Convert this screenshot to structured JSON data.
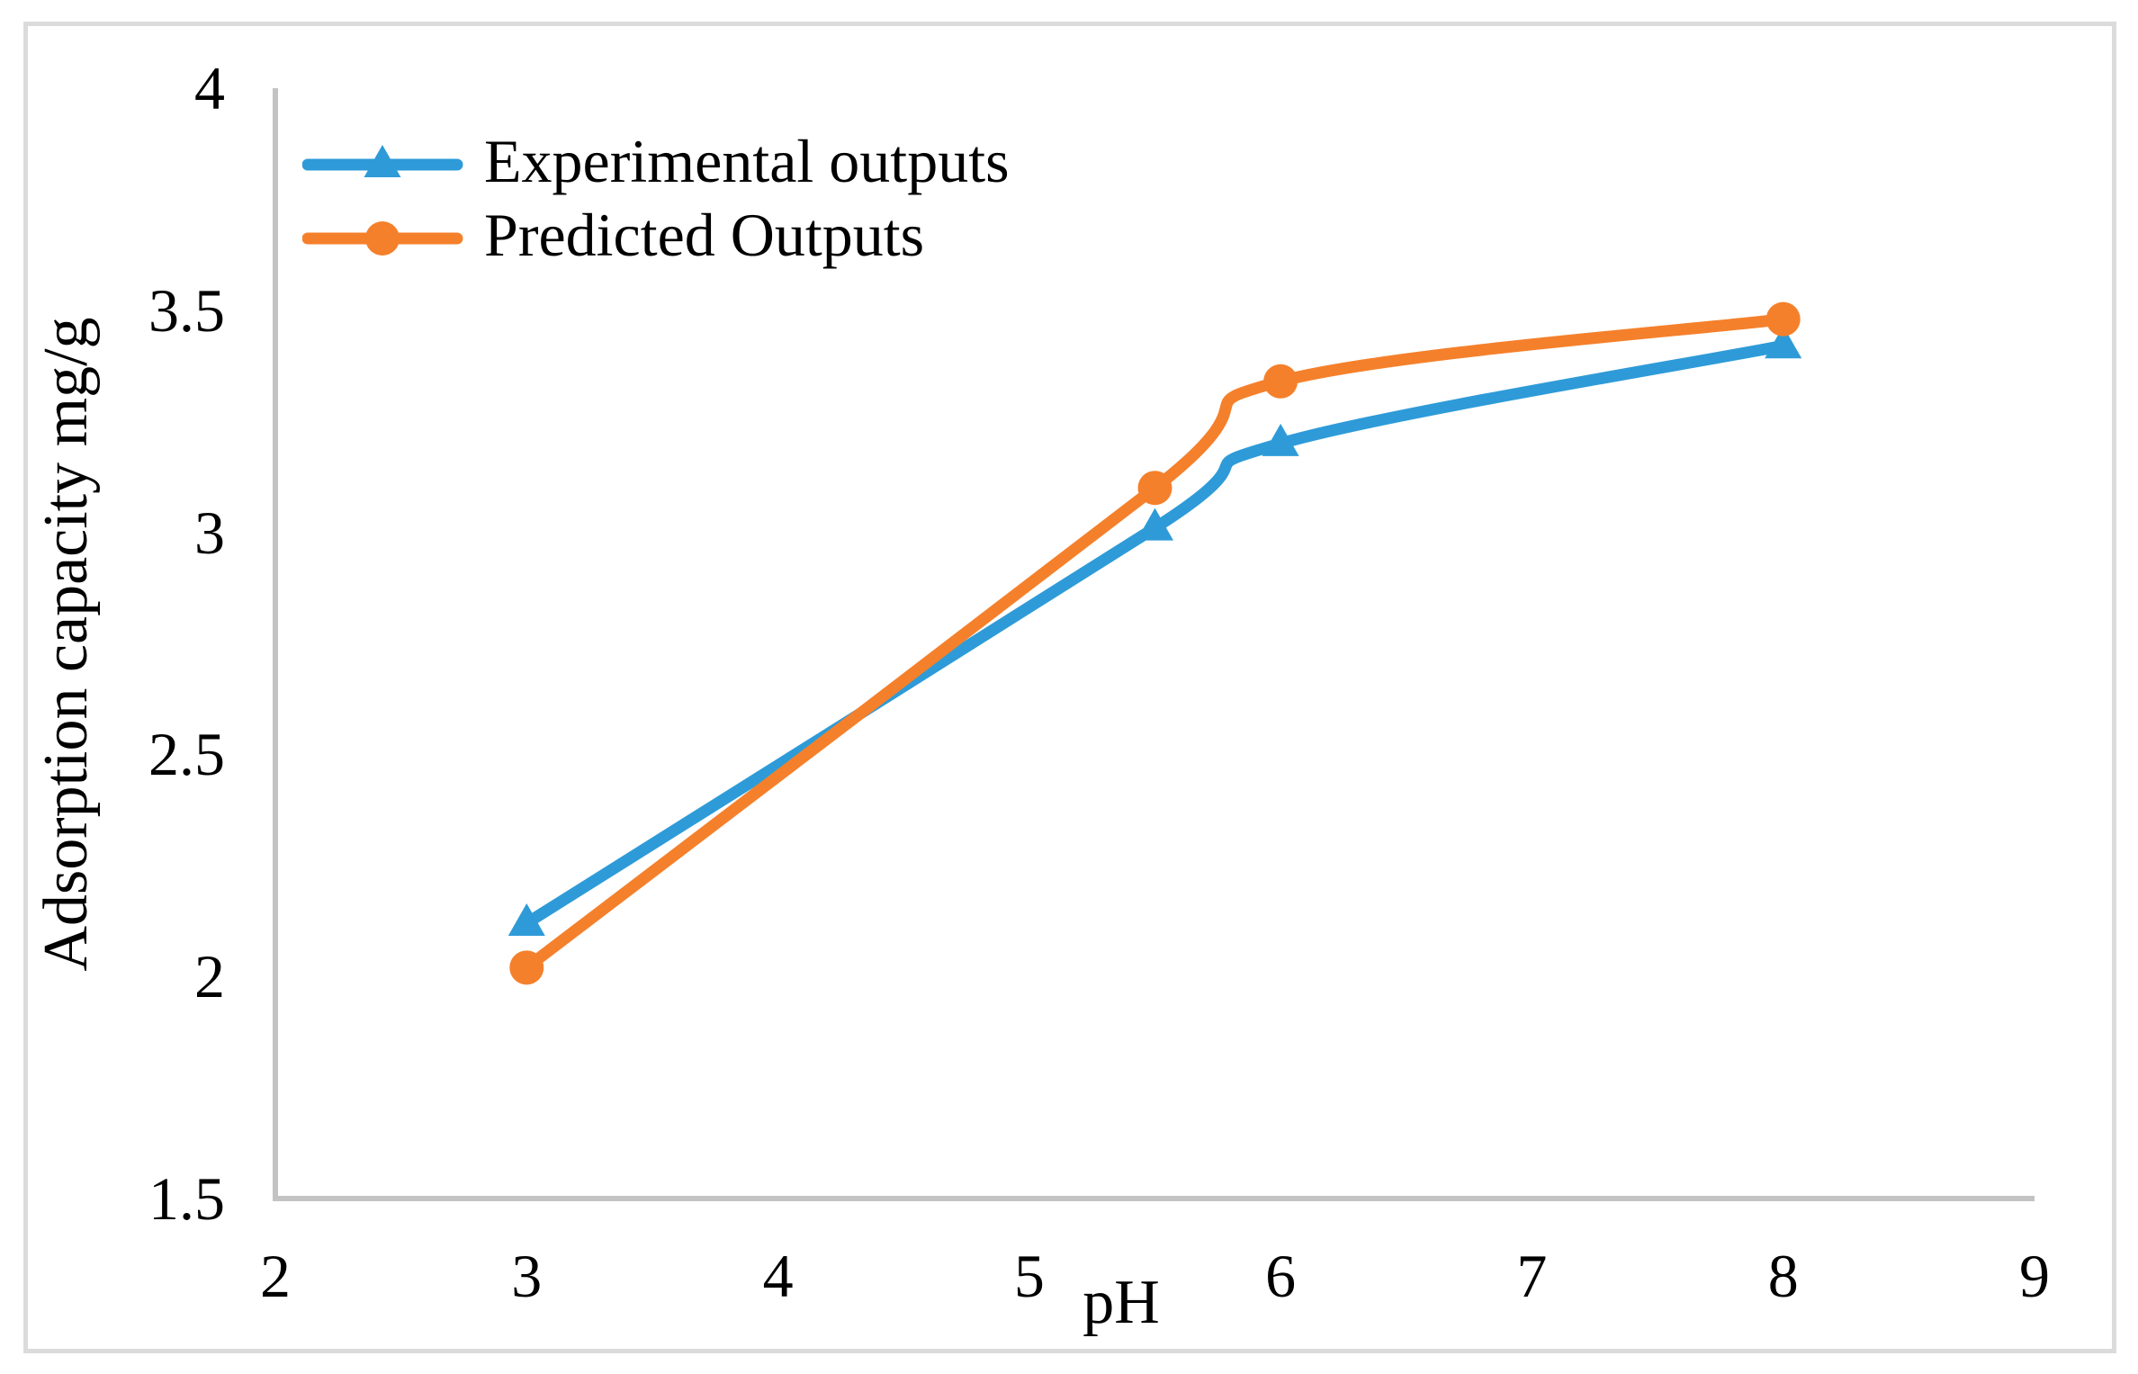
{
  "figure": {
    "background_color": "#FFFFFF",
    "border_color": "#DBDBDB",
    "axis_line_color": "#C3C3C3",
    "text_color": "#000000"
  },
  "chart_data": {
    "type": "line",
    "title": "",
    "xlabel": "pH",
    "ylabel": "Adsorption capacity mg/g",
    "xlim": [
      2,
      9
    ],
    "ylim": [
      1.5,
      4
    ],
    "x_ticks": [
      "2",
      "3",
      "4",
      "5",
      "6",
      "7",
      "8",
      "9"
    ],
    "y_ticks": [
      "1.5",
      "2",
      "2.5",
      "3",
      "3.5",
      "4"
    ],
    "grid": false,
    "smooth_lines": true,
    "legend_position": "top-left-inside",
    "x": [
      3,
      5.5,
      6,
      8
    ],
    "series": [
      {
        "name": "Experimental outputs",
        "color": "#2E9BD8",
        "marker": "triangle",
        "values": [
          2.12,
          3.01,
          3.2,
          3.42
        ]
      },
      {
        "name": "Predicted Outputs",
        "color": "#F5802B",
        "marker": "circle",
        "values": [
          2.02,
          3.1,
          3.34,
          3.48
        ]
      }
    ]
  }
}
